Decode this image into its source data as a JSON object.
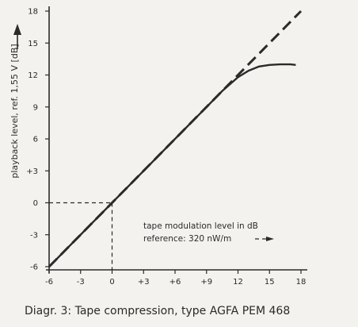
{
  "chart_data": {
    "type": "line",
    "caption": "Diagr. 3: Tape compression, type AGFA PEM 468",
    "ylabel": "playback level, ref. 1,55 V [dB]",
    "annotation_line1": "tape modulation level in dB",
    "annotation_line2": "reference: 320 nW/m",
    "xlim": [
      -6,
      18
    ],
    "ylim": [
      -6,
      18
    ],
    "x_ticks": [
      -6,
      -3,
      0,
      3,
      6,
      9,
      12,
      15,
      18
    ],
    "x_tick_labels": [
      "-6",
      "-3",
      "0",
      "+3",
      "+6",
      "+9",
      "12",
      "15",
      "18"
    ],
    "y_ticks": [
      -6,
      -3,
      0,
      3,
      6,
      9,
      12,
      15,
      18
    ],
    "y_tick_labels": [
      "-6",
      "-3",
      "0",
      "+3",
      "6",
      "9",
      "12",
      "15",
      "18"
    ],
    "series": [
      {
        "style": "dashed",
        "x": [
          -6,
          18
        ],
        "y": [
          -6,
          18
        ]
      },
      {
        "style": "solid",
        "x": [
          -6,
          0,
          3,
          6,
          9,
          10.5,
          12,
          13,
          14,
          15,
          16,
          17,
          17.5
        ],
        "y": [
          -6,
          0,
          3,
          6,
          9,
          10.5,
          11.8,
          12.4,
          12.8,
          12.95,
          13.0,
          13.0,
          12.95
        ]
      }
    ],
    "reference_point": {
      "x": 0,
      "y": 0
    },
    "grid": false
  }
}
